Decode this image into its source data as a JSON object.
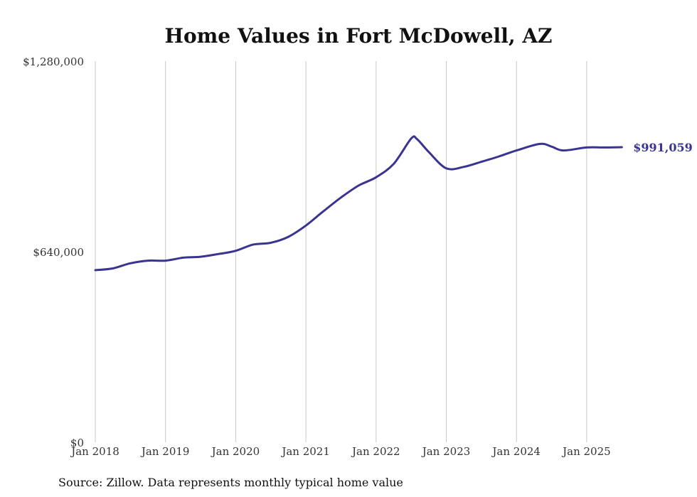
{
  "chart_data": {
    "type": "line",
    "title": "Home Values in Fort McDowell, AZ",
    "xlabel": "",
    "ylabel": "",
    "ylim": [
      0,
      1280000
    ],
    "y_ticks": [
      {
        "value": 0,
        "label": "$0"
      },
      {
        "value": 640000,
        "label": "$640,000"
      },
      {
        "value": 1280000,
        "label": "$1,280,000"
      }
    ],
    "x_ticks": [
      {
        "value": "2018-01",
        "label": "Jan 2018"
      },
      {
        "value": "2019-01",
        "label": "Jan 2019"
      },
      {
        "value": "2020-01",
        "label": "Jan 2020"
      },
      {
        "value": "2021-01",
        "label": "Jan 2021"
      },
      {
        "value": "2022-01",
        "label": "Jan 2022"
      },
      {
        "value": "2023-01",
        "label": "Jan 2023"
      },
      {
        "value": "2024-01",
        "label": "Jan 2024"
      },
      {
        "value": "2025-01",
        "label": "Jan 2025"
      }
    ],
    "grid": {
      "vertical": true,
      "horizontal": false
    },
    "series": [
      {
        "name": "",
        "color": "#3a3491",
        "end_label": "$991,059",
        "points": [
          {
            "x": "2018-01",
            "y": 578000
          },
          {
            "x": "2018-04",
            "y": 584000
          },
          {
            "x": "2018-07",
            "y": 601000
          },
          {
            "x": "2018-10",
            "y": 610000
          },
          {
            "x": "2019-01",
            "y": 610000
          },
          {
            "x": "2019-04",
            "y": 620000
          },
          {
            "x": "2019-07",
            "y": 623000
          },
          {
            "x": "2019-10",
            "y": 632000
          },
          {
            "x": "2020-01",
            "y": 643000
          },
          {
            "x": "2020-04",
            "y": 664000
          },
          {
            "x": "2020-07",
            "y": 670000
          },
          {
            "x": "2020-10",
            "y": 690000
          },
          {
            "x": "2021-01",
            "y": 728000
          },
          {
            "x": "2021-04",
            "y": 776000
          },
          {
            "x": "2021-07",
            "y": 822000
          },
          {
            "x": "2021-10",
            "y": 862000
          },
          {
            "x": "2022-01",
            "y": 890000
          },
          {
            "x": "2022-04",
            "y": 935000
          },
          {
            "x": "2022-07",
            "y": 1020000
          },
          {
            "x": "2022-08",
            "y": 1018000
          },
          {
            "x": "2022-10",
            "y": 975000
          },
          {
            "x": "2023-01",
            "y": 920000
          },
          {
            "x": "2023-04",
            "y": 925000
          },
          {
            "x": "2023-07",
            "y": 942000
          },
          {
            "x": "2023-10",
            "y": 960000
          },
          {
            "x": "2024-01",
            "y": 980000
          },
          {
            "x": "2024-05",
            "y": 1002000
          },
          {
            "x": "2024-07",
            "y": 993000
          },
          {
            "x": "2024-09",
            "y": 980000
          },
          {
            "x": "2025-01",
            "y": 990000
          },
          {
            "x": "2025-04",
            "y": 990000
          },
          {
            "x": "2025-07",
            "y": 991059
          }
        ]
      }
    ]
  },
  "footer": {
    "source": "Source: Zillow. Data represents monthly typical home value"
  }
}
